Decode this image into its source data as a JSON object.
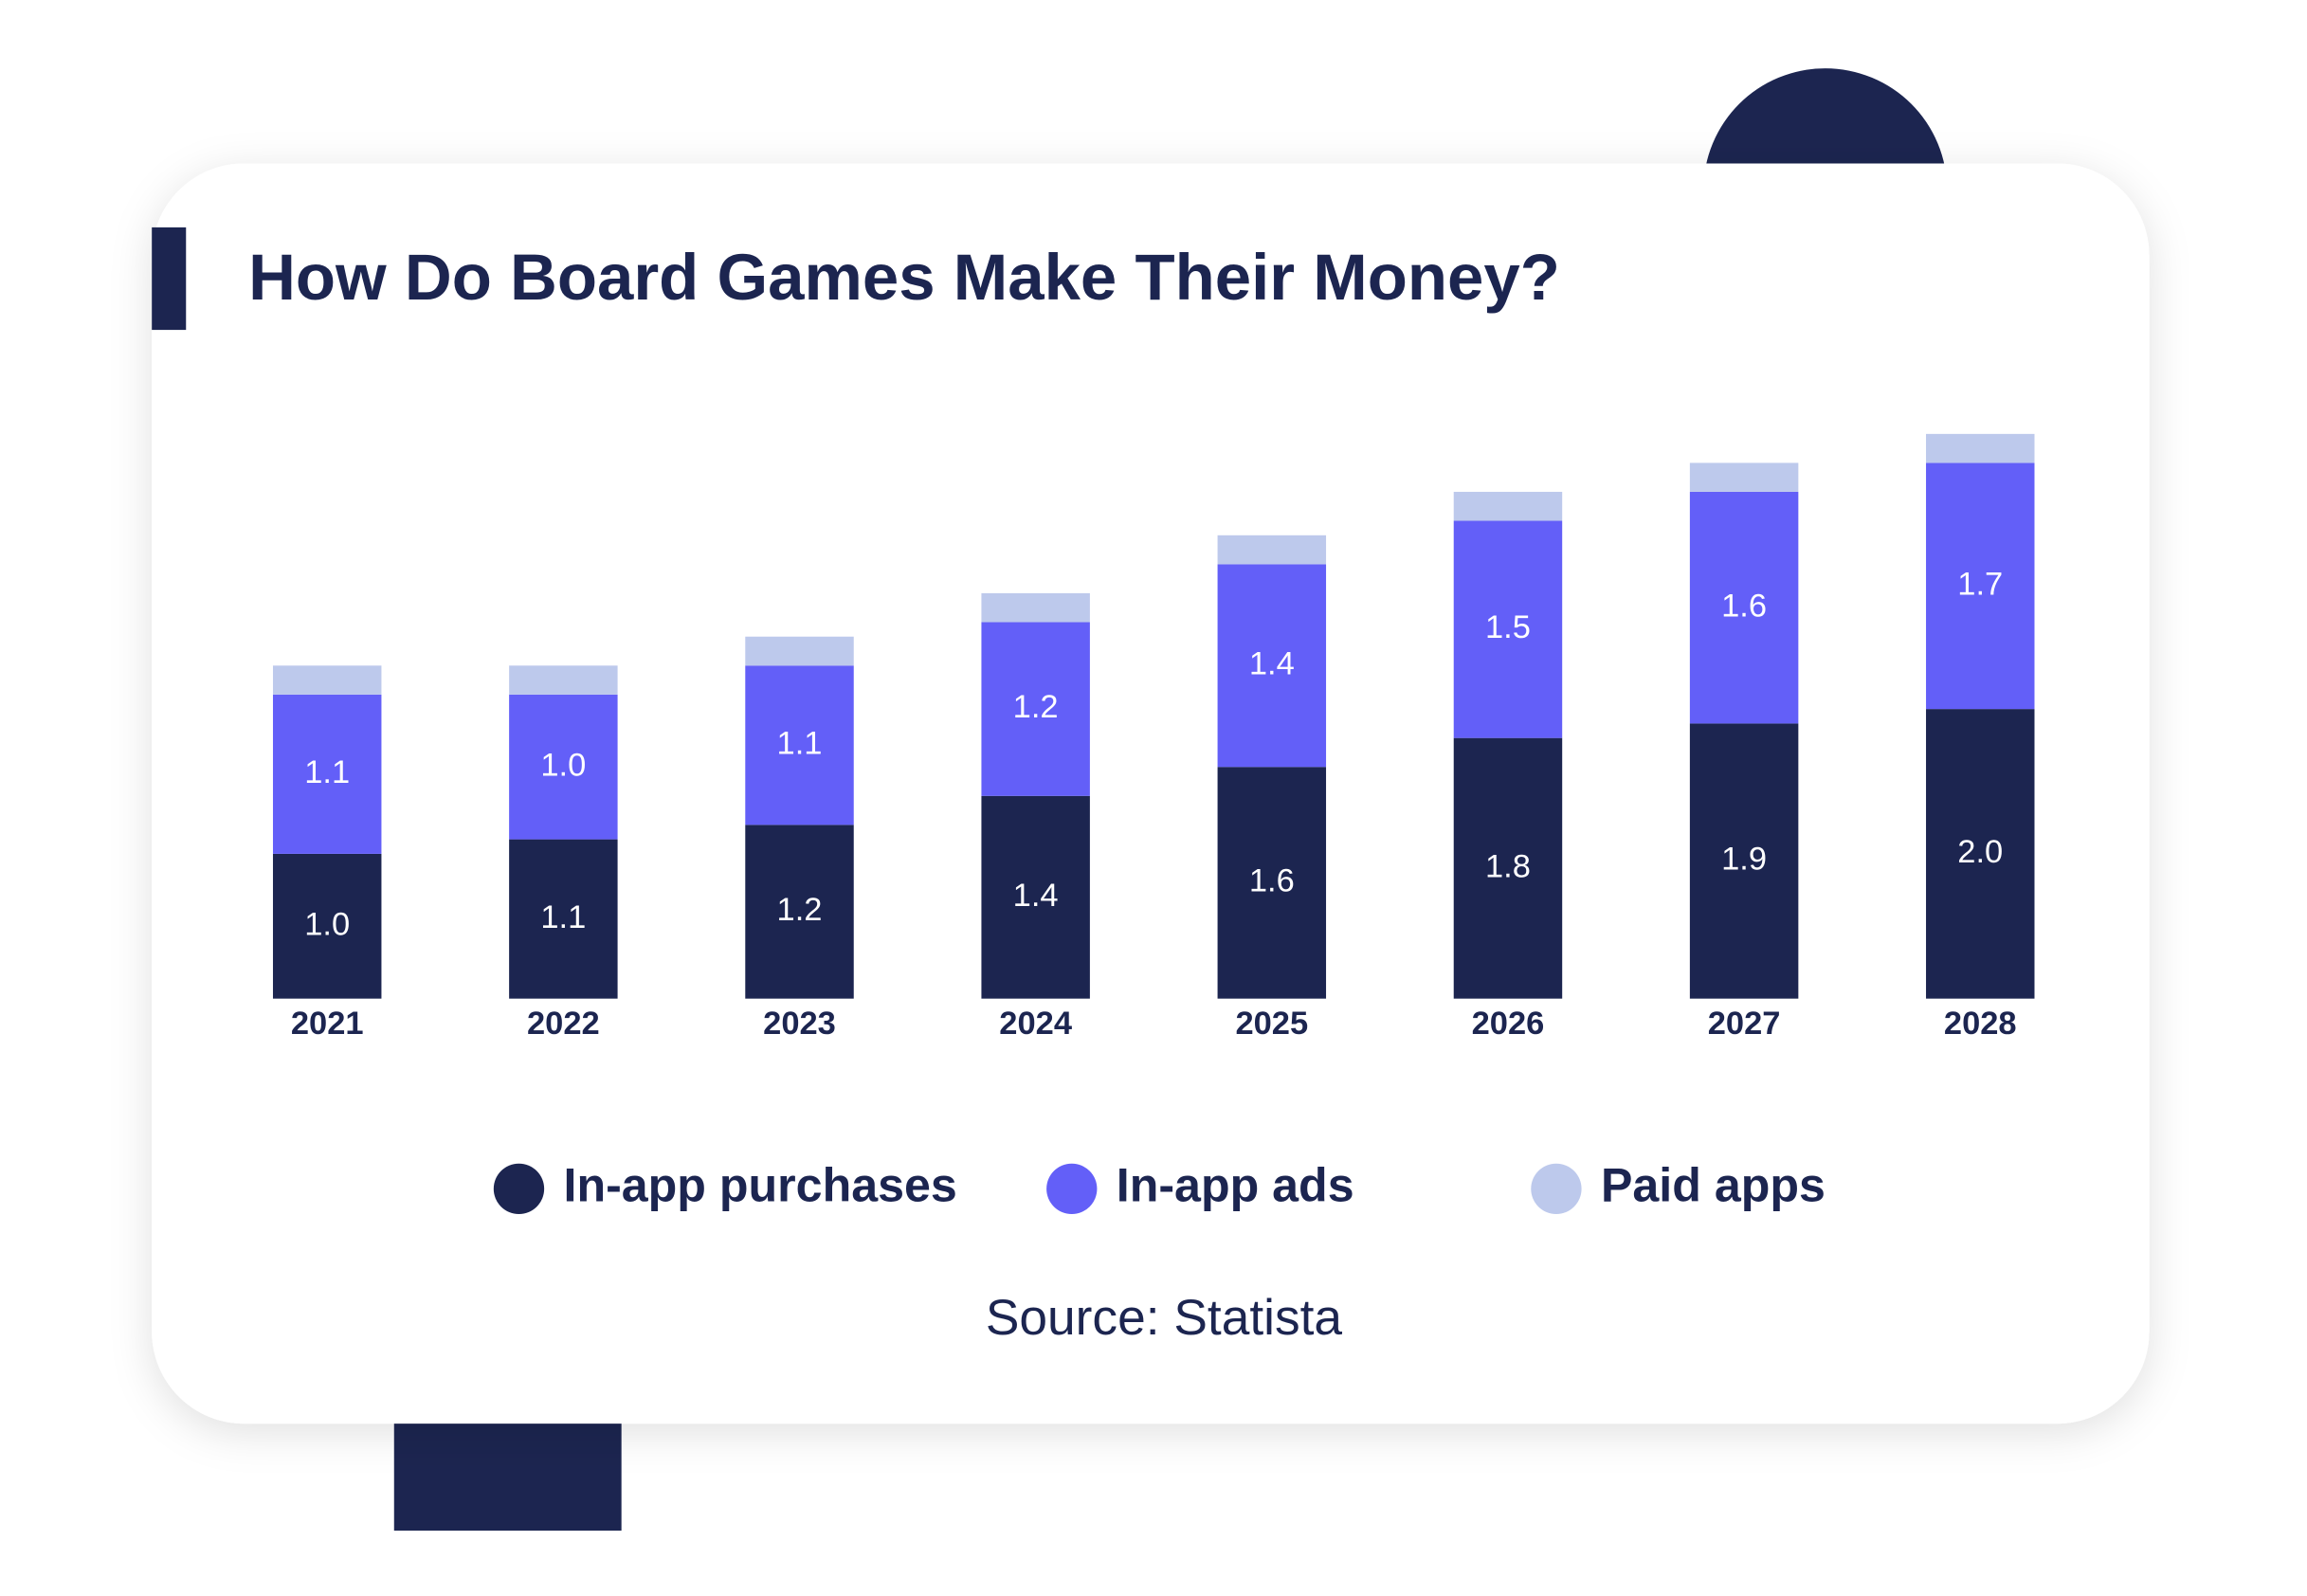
{
  "chart_data": {
    "type": "stacked-bar",
    "title": "How Do Board Games Make Their Money?",
    "source": "Source: Statista",
    "categories": [
      "2021",
      "2022",
      "2023",
      "2024",
      "2025",
      "2026",
      "2027",
      "2028"
    ],
    "series": [
      {
        "name": "In-app purchases",
        "color": "#1c2550",
        "values": [
          1.0,
          1.1,
          1.2,
          1.4,
          1.6,
          1.8,
          1.9,
          2.0
        ],
        "value_labels": [
          "1.0",
          "1.1",
          "1.2",
          "1.4",
          "1.6",
          "1.8",
          "1.9",
          "2.0"
        ]
      },
      {
        "name": "In-app ads",
        "color": "#635ff8",
        "values": [
          1.1,
          1.0,
          1.1,
          1.2,
          1.4,
          1.5,
          1.6,
          1.7
        ],
        "value_labels": [
          "1.1",
          "1.0",
          "1.1",
          "1.2",
          "1.4",
          "1.5",
          "1.6",
          "1.7"
        ]
      },
      {
        "name": "Paid apps",
        "color": "#bdc9ec",
        "values": [
          0.2,
          0.2,
          0.2,
          0.2,
          0.2,
          0.2,
          0.2,
          0.2
        ]
      }
    ]
  }
}
